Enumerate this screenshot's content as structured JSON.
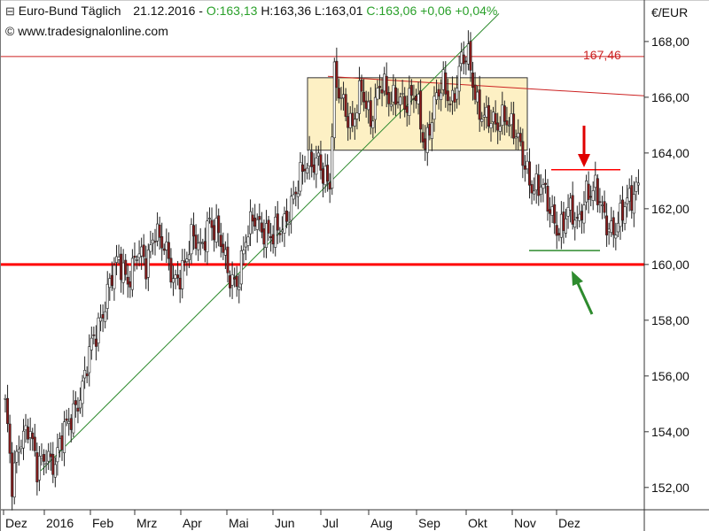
{
  "header": {
    "instrument": "Euro-Bund Täglich",
    "date": "21.12.2016",
    "open": "O:163,13",
    "high": "H:163,36",
    "low": "L:163,01",
    "close": "C:163,06",
    "change": "+0,06",
    "change_pct": "+0,04%",
    "website": "www.tradesignalonline.com",
    "currency": "€/EUR"
  },
  "colors": {
    "positive": "#2aa02a",
    "candle_up": "#ffffff",
    "candle_down": "#8b1a1a",
    "support": "#ff0000",
    "resistance": "#cc2222",
    "trendline": "#2e8b2e",
    "range_box_fill": "#fdf0c4",
    "range_box_stroke": "#333333",
    "arrow_down": "#e00000",
    "arrow_up": "#2e8b2e"
  },
  "chart_data": {
    "type": "candlestick",
    "ylim": [
      151.2,
      168.6
    ],
    "y_ticks": [
      "152,00",
      "154,00",
      "156,00",
      "158,00",
      "160,00",
      "162,00",
      "164,00",
      "166,00",
      "168,00"
    ],
    "y_tick_values": [
      152,
      154,
      156,
      158,
      160,
      162,
      164,
      166,
      168
    ],
    "x_months": [
      "Dez",
      "2016",
      "Feb",
      "Mrz",
      "Apr",
      "Mai",
      "Jun",
      "Jul",
      "Aug",
      "Sep",
      "Okt",
      "Nov",
      "Dez"
    ],
    "annotation_level_label": "167,46",
    "annotation_level": 167.46,
    "support_level": 160.0,
    "trendline": [
      {
        "x": "2016-01",
        "y": 152.6
      },
      {
        "x": "2016-09",
        "y": 169.0
      }
    ],
    "upper_channel": [
      {
        "x": "2016-07",
        "y": 166.7
      },
      {
        "x": "2016-12",
        "y": 166.1
      }
    ],
    "range_box": {
      "x_start": "2016-06",
      "x_end": "2016-10",
      "top": 166.7,
      "bottom": 164.1
    },
    "recent_resistance": 163.4,
    "recent_support": 160.5,
    "path": [
      [
        0,
        154.8
      ],
      [
        3,
        152.0
      ],
      [
        6,
        153.8
      ],
      [
        10,
        154.2
      ],
      [
        14,
        152.5
      ],
      [
        18,
        153.4
      ],
      [
        22,
        152.8
      ],
      [
        26,
        153.9
      ],
      [
        30,
        154.9
      ],
      [
        34,
        155.5
      ],
      [
        38,
        157.0
      ],
      [
        42,
        158.2
      ],
      [
        46,
        159.3
      ],
      [
        50,
        160.0
      ],
      [
        54,
        159.6
      ],
      [
        58,
        160.4
      ],
      [
        62,
        159.8
      ],
      [
        66,
        161.5
      ],
      [
        70,
        160.6
      ],
      [
        74,
        159.2
      ],
      [
        78,
        160.0
      ],
      [
        82,
        160.9
      ],
      [
        86,
        160.4
      ],
      [
        90,
        161.8
      ],
      [
        94,
        161.0
      ],
      [
        98,
        159.6
      ],
      [
        102,
        159.5
      ],
      [
        106,
        160.8
      ],
      [
        110,
        161.6
      ],
      [
        114,
        161.4
      ],
      [
        118,
        160.9
      ],
      [
        122,
        161.2
      ],
      [
        126,
        162.4
      ],
      [
        130,
        163.0
      ],
      [
        134,
        163.6
      ],
      [
        138,
        164.0
      ],
      [
        141,
        163.0
      ],
      [
        143,
        162.6
      ],
      [
        145,
        166.6
      ],
      [
        149,
        166.0
      ],
      [
        153,
        164.8
      ],
      [
        157,
        166.2
      ],
      [
        161,
        165.4
      ],
      [
        165,
        166.4
      ],
      [
        169,
        165.8
      ],
      [
        173,
        166.3
      ],
      [
        177,
        165.6
      ],
      [
        181,
        166.0
      ],
      [
        185,
        164.4
      ],
      [
        189,
        165.6
      ],
      [
        193,
        166.4
      ],
      [
        197,
        166.0
      ],
      [
        201,
        167.2
      ],
      [
        204,
        167.3
      ],
      [
        208,
        165.9
      ],
      [
        212,
        165.2
      ],
      [
        216,
        164.8
      ],
      [
        220,
        165.6
      ],
      [
        224,
        164.8
      ],
      [
        228,
        163.7
      ],
      [
        232,
        163.0
      ],
      [
        236,
        162.8
      ],
      [
        240,
        161.8
      ],
      [
        244,
        161.4
      ],
      [
        248,
        161.9
      ],
      [
        252,
        161.3
      ],
      [
        256,
        162.8
      ],
      [
        260,
        162.6
      ],
      [
        264,
        161.5
      ],
      [
        268,
        161.4
      ],
      [
        272,
        161.8
      ],
      [
        276,
        162.3
      ],
      [
        279,
        163.1
      ]
    ]
  }
}
